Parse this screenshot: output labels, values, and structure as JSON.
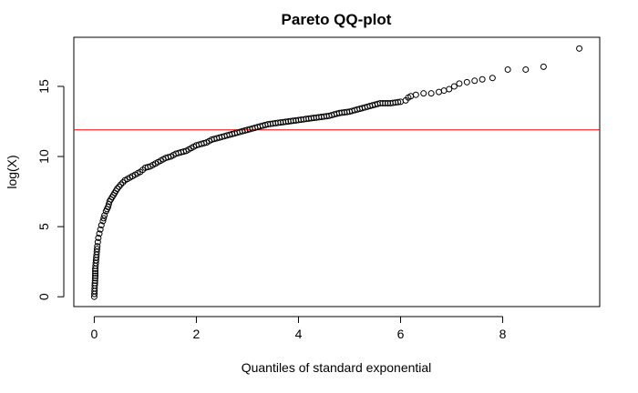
{
  "chart_data": {
    "type": "scatter",
    "title": "Pareto QQ-plot",
    "xlabel": "Quantiles of standard exponential",
    "ylabel": "log(X)",
    "xlim": [
      -0.4,
      9.9
    ],
    "ylim": [
      -0.7,
      18.5
    ],
    "x_ticks": [
      0,
      2,
      4,
      6,
      8
    ],
    "y_ticks": [
      0,
      5,
      10,
      15
    ],
    "grid": false,
    "marker": "open-circle",
    "point_color": "#000000",
    "reference_line": {
      "orientation": "horizontal",
      "y": 11.9,
      "color": "#ff0000"
    },
    "points": [
      [
        0.0,
        0.0
      ],
      [
        0.01,
        0.8
      ],
      [
        0.02,
        1.5
      ],
      [
        0.02,
        2.0
      ],
      [
        0.03,
        2.4
      ],
      [
        0.04,
        2.8
      ],
      [
        0.05,
        3.2
      ],
      [
        0.06,
        3.6
      ],
      [
        0.07,
        3.9
      ],
      [
        0.08,
        4.2
      ],
      [
        0.1,
        4.5
      ],
      [
        0.12,
        4.8
      ],
      [
        0.14,
        5.1
      ],
      [
        0.17,
        5.4
      ],
      [
        0.2,
        5.8
      ],
      [
        0.23,
        6.1
      ],
      [
        0.27,
        6.4
      ],
      [
        0.3,
        6.8
      ],
      [
        0.35,
        7.1
      ],
      [
        0.4,
        7.4
      ],
      [
        0.45,
        7.7
      ],
      [
        0.52,
        8.0
      ],
      [
        0.6,
        8.3
      ],
      [
        0.7,
        8.5
      ],
      [
        0.8,
        8.7
      ],
      [
        0.9,
        8.9
      ],
      [
        1.0,
        9.2
      ],
      [
        1.1,
        9.3
      ],
      [
        1.2,
        9.5
      ],
      [
        1.3,
        9.7
      ],
      [
        1.4,
        9.9
      ],
      [
        1.5,
        10.0
      ],
      [
        1.6,
        10.2
      ],
      [
        1.7,
        10.3
      ],
      [
        1.8,
        10.4
      ],
      [
        1.9,
        10.6
      ],
      [
        2.0,
        10.8
      ],
      [
        2.1,
        10.9
      ],
      [
        2.2,
        11.0
      ],
      [
        2.3,
        11.2
      ],
      [
        2.4,
        11.3
      ],
      [
        2.5,
        11.4
      ],
      [
        2.6,
        11.5
      ],
      [
        2.7,
        11.6
      ],
      [
        2.8,
        11.7
      ],
      [
        2.9,
        11.8
      ],
      [
        3.0,
        11.9
      ],
      [
        3.1,
        12.0
      ],
      [
        3.2,
        12.1
      ],
      [
        3.3,
        12.2
      ],
      [
        3.4,
        12.3
      ],
      [
        3.6,
        12.4
      ],
      [
        3.8,
        12.5
      ],
      [
        4.0,
        12.6
      ],
      [
        4.2,
        12.7
      ],
      [
        4.4,
        12.8
      ],
      [
        4.6,
        12.9
      ],
      [
        4.8,
        13.1
      ],
      [
        5.0,
        13.2
      ],
      [
        5.1,
        13.3
      ],
      [
        5.2,
        13.4
      ],
      [
        5.3,
        13.5
      ],
      [
        5.4,
        13.6
      ],
      [
        5.5,
        13.7
      ],
      [
        5.6,
        13.8
      ],
      [
        5.8,
        13.8
      ],
      [
        6.0,
        13.9
      ],
      [
        6.1,
        14.0
      ],
      [
        6.15,
        14.2
      ],
      [
        6.2,
        14.3
      ],
      [
        6.3,
        14.4
      ],
      [
        6.45,
        14.5
      ],
      [
        6.6,
        14.5
      ],
      [
        6.75,
        14.6
      ],
      [
        6.85,
        14.7
      ],
      [
        6.95,
        14.8
      ],
      [
        7.05,
        15.0
      ],
      [
        7.15,
        15.2
      ],
      [
        7.3,
        15.3
      ],
      [
        7.45,
        15.4
      ],
      [
        7.6,
        15.5
      ],
      [
        7.8,
        15.6
      ],
      [
        8.1,
        16.2
      ],
      [
        8.45,
        16.2
      ],
      [
        8.8,
        16.4
      ],
      [
        9.5,
        17.7
      ]
    ]
  }
}
